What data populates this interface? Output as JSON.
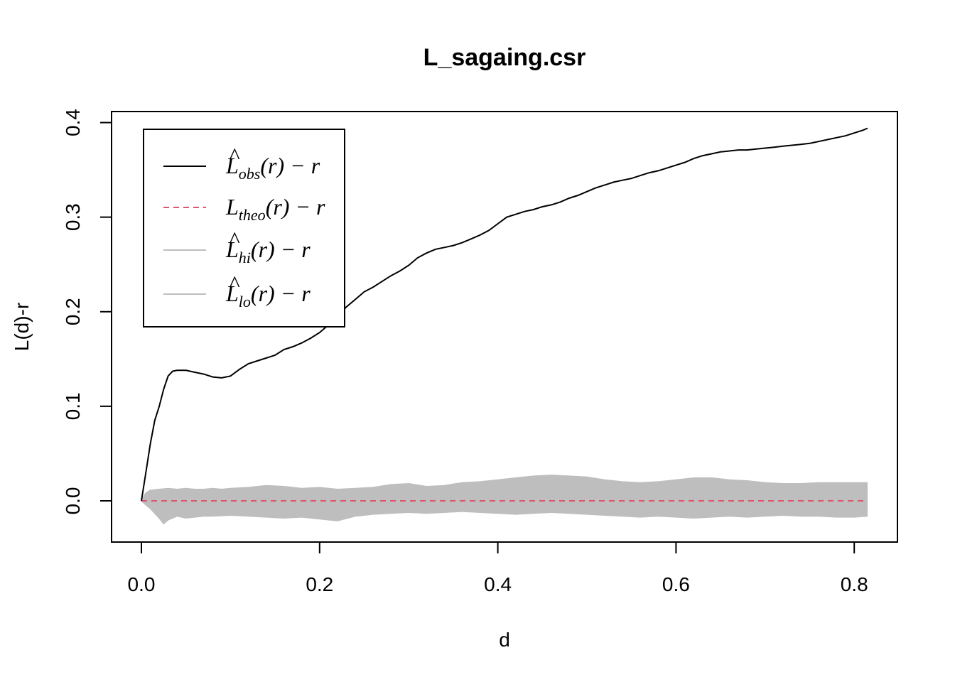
{
  "chart_data": {
    "type": "line",
    "title": "L_sagaing.csr",
    "xlabel": "d",
    "ylabel": "L(d)-r",
    "xlim": [
      0.0,
      0.815
    ],
    "ylim": [
      -0.042,
      0.41
    ],
    "xticks": [
      0.0,
      0.2,
      0.4,
      0.6,
      0.8
    ],
    "xtick_labels": [
      "0.0",
      "0.2",
      "0.4",
      "0.6",
      "0.8"
    ],
    "yticks": [
      0.0,
      0.1,
      0.2,
      0.3,
      0.4
    ],
    "ytick_labels": [
      "0.0",
      "0.1",
      "0.2",
      "0.3",
      "0.4"
    ],
    "grid": false,
    "legend_position": "top-left",
    "colors": {
      "obs": "#000000",
      "theo": "#DF536B",
      "envelope": "#BEBEBE"
    },
    "series": [
      {
        "key": "obs",
        "name_main": "L",
        "name_hat": "^",
        "name_sub": "obs",
        "name_tail": "(r) − r",
        "style": "solid",
        "x": [
          0.0,
          0.005,
          0.01,
          0.015,
          0.02,
          0.025,
          0.03,
          0.035,
          0.04,
          0.05,
          0.06,
          0.07,
          0.08,
          0.09,
          0.1,
          0.11,
          0.12,
          0.13,
          0.14,
          0.15,
          0.16,
          0.17,
          0.18,
          0.19,
          0.2,
          0.21,
          0.22,
          0.23,
          0.24,
          0.25,
          0.26,
          0.27,
          0.28,
          0.29,
          0.3,
          0.31,
          0.32,
          0.33,
          0.34,
          0.35,
          0.36,
          0.37,
          0.38,
          0.39,
          0.4,
          0.41,
          0.42,
          0.43,
          0.44,
          0.45,
          0.46,
          0.47,
          0.48,
          0.49,
          0.5,
          0.51,
          0.52,
          0.53,
          0.54,
          0.55,
          0.56,
          0.57,
          0.58,
          0.59,
          0.6,
          0.61,
          0.62,
          0.63,
          0.64,
          0.65,
          0.66,
          0.67,
          0.68,
          0.69,
          0.7,
          0.71,
          0.72,
          0.73,
          0.74,
          0.75,
          0.76,
          0.77,
          0.78,
          0.79,
          0.8,
          0.81,
          0.815
        ],
        "y": [
          0.0,
          0.03,
          0.06,
          0.085,
          0.1,
          0.118,
          0.132,
          0.137,
          0.138,
          0.138,
          0.136,
          0.134,
          0.131,
          0.13,
          0.132,
          0.139,
          0.145,
          0.148,
          0.151,
          0.154,
          0.16,
          0.163,
          0.167,
          0.172,
          0.178,
          0.186,
          0.195,
          0.205,
          0.213,
          0.221,
          0.226,
          0.232,
          0.238,
          0.243,
          0.249,
          0.257,
          0.262,
          0.266,
          0.268,
          0.27,
          0.273,
          0.277,
          0.281,
          0.286,
          0.293,
          0.3,
          0.303,
          0.306,
          0.308,
          0.311,
          0.313,
          0.316,
          0.32,
          0.323,
          0.327,
          0.331,
          0.334,
          0.337,
          0.339,
          0.341,
          0.344,
          0.347,
          0.349,
          0.352,
          0.355,
          0.358,
          0.362,
          0.365,
          0.367,
          0.369,
          0.37,
          0.371,
          0.371,
          0.372,
          0.373,
          0.374,
          0.375,
          0.376,
          0.377,
          0.378,
          0.38,
          0.382,
          0.384,
          0.386,
          0.389,
          0.392,
          0.394
        ]
      },
      {
        "key": "theo",
        "name_main": "L",
        "name_hat": "",
        "name_sub": "theo",
        "name_tail": "(r) − r",
        "style": "dashed",
        "x": [
          0.0,
          0.815
        ],
        "y": [
          0.0,
          0.0
        ]
      },
      {
        "key": "hi",
        "name_main": "L",
        "name_hat": "^",
        "name_sub": "hi",
        "name_tail": "(r) − r",
        "style": "solid",
        "x": [
          0.0,
          0.005,
          0.01,
          0.02,
          0.03,
          0.04,
          0.05,
          0.06,
          0.07,
          0.08,
          0.09,
          0.1,
          0.12,
          0.14,
          0.16,
          0.18,
          0.2,
          0.22,
          0.24,
          0.26,
          0.28,
          0.3,
          0.32,
          0.34,
          0.36,
          0.38,
          0.4,
          0.42,
          0.44,
          0.46,
          0.48,
          0.5,
          0.52,
          0.54,
          0.56,
          0.58,
          0.6,
          0.62,
          0.64,
          0.66,
          0.68,
          0.7,
          0.72,
          0.74,
          0.76,
          0.78,
          0.8,
          0.815
        ],
        "y": [
          0.0,
          0.008,
          0.011,
          0.012,
          0.013,
          0.012,
          0.013,
          0.012,
          0.012,
          0.013,
          0.012,
          0.013,
          0.014,
          0.016,
          0.015,
          0.013,
          0.014,
          0.012,
          0.013,
          0.014,
          0.017,
          0.018,
          0.015,
          0.016,
          0.019,
          0.02,
          0.022,
          0.024,
          0.026,
          0.027,
          0.026,
          0.025,
          0.022,
          0.02,
          0.019,
          0.02,
          0.022,
          0.024,
          0.024,
          0.022,
          0.021,
          0.019,
          0.018,
          0.018,
          0.019,
          0.019,
          0.019,
          0.019
        ]
      },
      {
        "key": "lo",
        "name_main": "L",
        "name_hat": "^",
        "name_sub": "lo",
        "name_tail": "(r) − r",
        "style": "solid",
        "x": [
          0.0,
          0.005,
          0.01,
          0.015,
          0.02,
          0.025,
          0.03,
          0.04,
          0.05,
          0.06,
          0.07,
          0.08,
          0.1,
          0.12,
          0.14,
          0.16,
          0.18,
          0.2,
          0.22,
          0.24,
          0.26,
          0.28,
          0.3,
          0.32,
          0.34,
          0.36,
          0.38,
          0.4,
          0.42,
          0.44,
          0.46,
          0.48,
          0.5,
          0.52,
          0.54,
          0.56,
          0.58,
          0.6,
          0.62,
          0.64,
          0.66,
          0.68,
          0.7,
          0.72,
          0.74,
          0.76,
          0.78,
          0.8,
          0.815
        ],
        "y": [
          0.0,
          -0.004,
          -0.008,
          -0.013,
          -0.018,
          -0.024,
          -0.02,
          -0.016,
          -0.018,
          -0.017,
          -0.016,
          -0.016,
          -0.015,
          -0.016,
          -0.017,
          -0.018,
          -0.017,
          -0.019,
          -0.021,
          -0.016,
          -0.014,
          -0.013,
          -0.012,
          -0.013,
          -0.012,
          -0.011,
          -0.012,
          -0.013,
          -0.014,
          -0.013,
          -0.012,
          -0.013,
          -0.014,
          -0.015,
          -0.016,
          -0.017,
          -0.016,
          -0.017,
          -0.018,
          -0.017,
          -0.016,
          -0.017,
          -0.016,
          -0.015,
          -0.016,
          -0.016,
          -0.017,
          -0.017,
          -0.016
        ]
      }
    ]
  }
}
